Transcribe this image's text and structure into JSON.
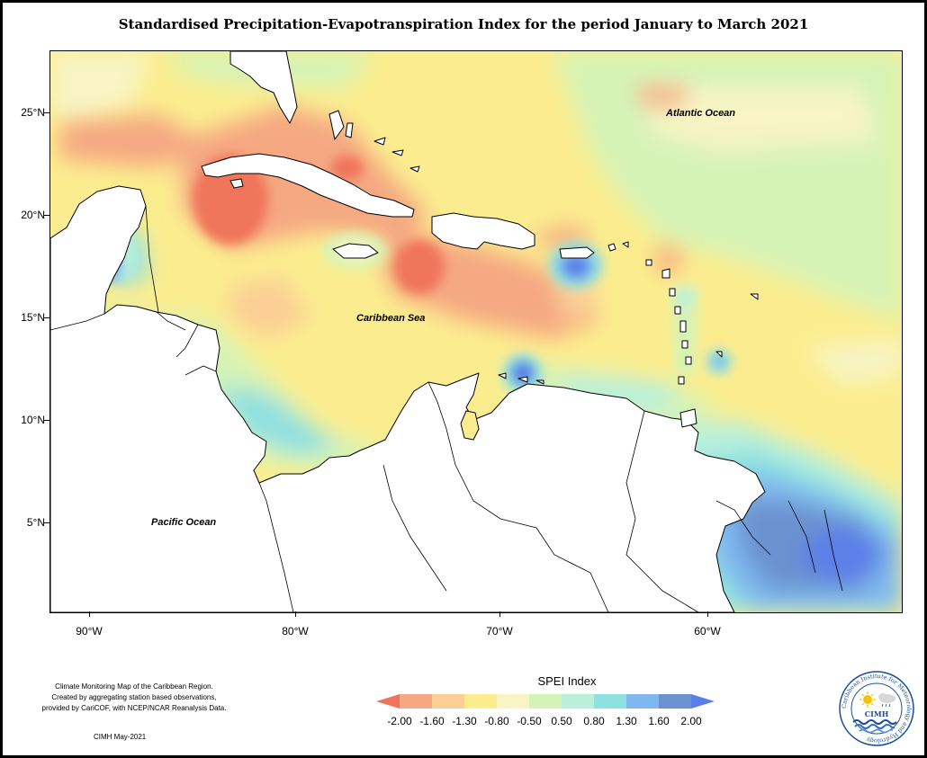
{
  "title": "Standardised Precipitation-Evapotranspiration Index for the period January to March 2021",
  "map": {
    "lat_ticks": [
      "25°N",
      "20°N",
      "15°N",
      "10°N",
      "5°N"
    ],
    "lon_ticks": [
      "90°W",
      "80°W",
      "70°W",
      "60°W"
    ],
    "ocean_labels": {
      "atlantic": "Atlantic Ocean",
      "caribbean": "Caribbean Sea",
      "pacific": "Pacific Ocean"
    }
  },
  "legend": {
    "title": "SPEI Index",
    "tick_labels": [
      "-2.00",
      "-1.60",
      "-1.30",
      "-0.80",
      "-0.50",
      "0.50",
      "0.80",
      "1.30",
      "1.60",
      "2.00"
    ],
    "colors": [
      "#f0745a",
      "#f5a882",
      "#fbcf95",
      "#fbed8f",
      "#f8f4c4",
      "#d6f3b6",
      "#b8f0dc",
      "#8fe0e0",
      "#7fb8ee",
      "#6a92cf",
      "#5b7fe8"
    ]
  },
  "credits": {
    "line1": "Climate Monitoring Map of the Caribbean Region.",
    "line2": "Created by aggregating station based observations,",
    "line3": "provided by CariCOF, with NCEP/NCAR Reanalysis Data.",
    "date": "CIMH May-2021"
  },
  "logo": {
    "org": "CIMH",
    "ring_text": "Caribbean Institute for Meteorology and Hydrology"
  }
}
